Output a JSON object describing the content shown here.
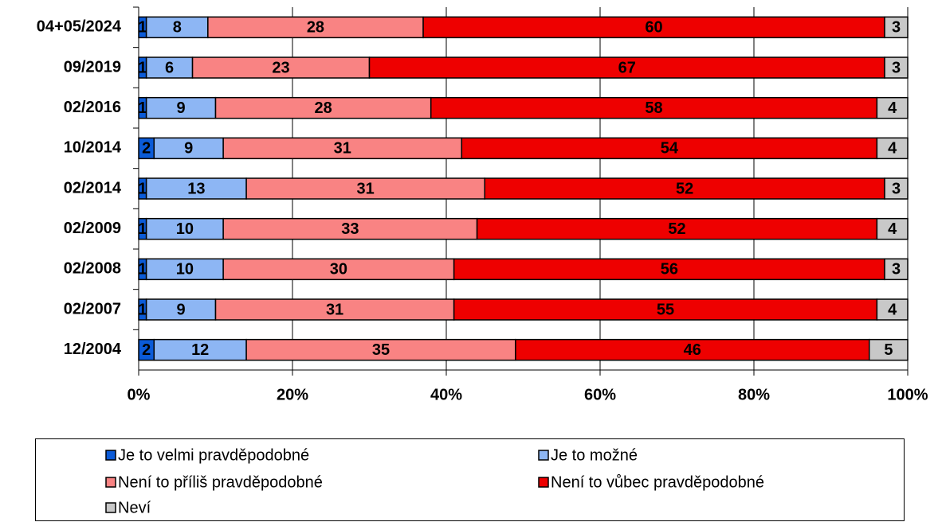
{
  "chart_data": {
    "type": "stacked-bar-horizontal",
    "categories": [
      "04+05/2024",
      "09/2019",
      "02/2016",
      "10/2014",
      "02/2014",
      "02/2009",
      "02/2008",
      "02/2007",
      "12/2004"
    ],
    "series": [
      {
        "name": "Je to velmi pravděpodobné",
        "color": "#0b5bd8",
        "values": [
          1,
          1,
          1,
          2,
          1,
          1,
          1,
          1,
          2
        ]
      },
      {
        "name": "Je to možné",
        "color": "#8db6f4",
        "values": [
          8,
          6,
          9,
          9,
          13,
          10,
          10,
          9,
          12
        ]
      },
      {
        "name": "Není to příliš pravděpodobné",
        "color": "#f98383",
        "values": [
          28,
          23,
          28,
          31,
          31,
          33,
          30,
          31,
          35
        ]
      },
      {
        "name": "Není to vůbec pravděpodobné",
        "color": "#ee0000",
        "values": [
          60,
          67,
          58,
          54,
          52,
          52,
          56,
          55,
          46
        ]
      },
      {
        "name": "Neví",
        "color": "#c8c8c8",
        "values": [
          3,
          3,
          4,
          4,
          3,
          4,
          3,
          4,
          5
        ]
      }
    ],
    "xlim": [
      0,
      100
    ],
    "xticks": [
      {
        "value": 0,
        "label": "0%"
      },
      {
        "value": 20,
        "label": "20%"
      },
      {
        "value": 40,
        "label": "40%"
      },
      {
        "value": 60,
        "label": "60%"
      },
      {
        "value": 80,
        "label": "80%"
      },
      {
        "value": 100,
        "label": "100%"
      }
    ],
    "grid": true,
    "legend": "bottom"
  }
}
